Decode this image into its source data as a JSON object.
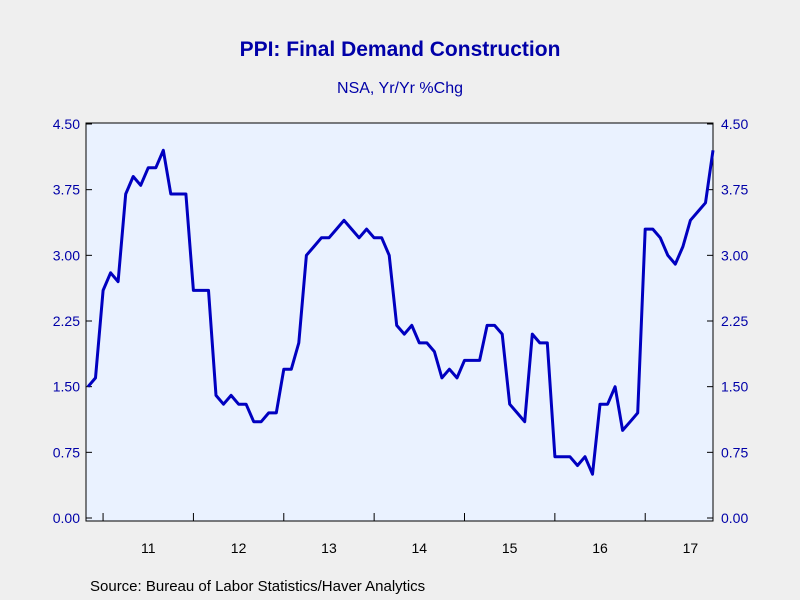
{
  "chart_data": {
    "type": "line",
    "title": "PPI: Final Demand Construction",
    "subtitle": "NSA, Yr/Yr %Chg",
    "source": "Source:  Bureau of Labor Statistics/Haver Analytics",
    "xlabel": "",
    "ylabel": "",
    "ylim": [
      0,
      4.5
    ],
    "yticks": [
      "4.50",
      "3.75",
      "3.00",
      "2.25",
      "1.50",
      "0.75",
      "0.00"
    ],
    "xtick_labels": [
      "11",
      "12",
      "13",
      "14",
      "15",
      "16",
      "17"
    ],
    "x_start": "2010-11",
    "grid": false,
    "line_color": "#0000c0",
    "background_color": "#eaf2ff",
    "series": [
      {
        "values": [
          1.5,
          1.6,
          2.6,
          2.8,
          2.7,
          3.7,
          3.9,
          3.8,
          4.0,
          4.0,
          4.2,
          3.7,
          3.7,
          3.7,
          2.6,
          2.6,
          2.6,
          1.4,
          1.3,
          1.4,
          1.3,
          1.3,
          1.1,
          1.1,
          1.2,
          1.2,
          1.7,
          1.7,
          2.0,
          3.0,
          3.1,
          3.2,
          3.2,
          3.3,
          3.4,
          3.3,
          3.2,
          3.3,
          3.2,
          3.2,
          3.0,
          2.2,
          2.1,
          2.2,
          2.0,
          2.0,
          1.9,
          1.6,
          1.7,
          1.6,
          1.8,
          1.8,
          1.8,
          2.2,
          2.2,
          2.1,
          1.3,
          1.2,
          1.1,
          2.1,
          2.0,
          2.0,
          0.7,
          0.7,
          0.7,
          0.6,
          0.7,
          0.5,
          1.3,
          1.3,
          1.5,
          1.0,
          1.1,
          1.2,
          3.3,
          3.3,
          3.2,
          3.0,
          2.9,
          3.1,
          3.4,
          3.5,
          3.6,
          4.2
        ]
      }
    ]
  }
}
